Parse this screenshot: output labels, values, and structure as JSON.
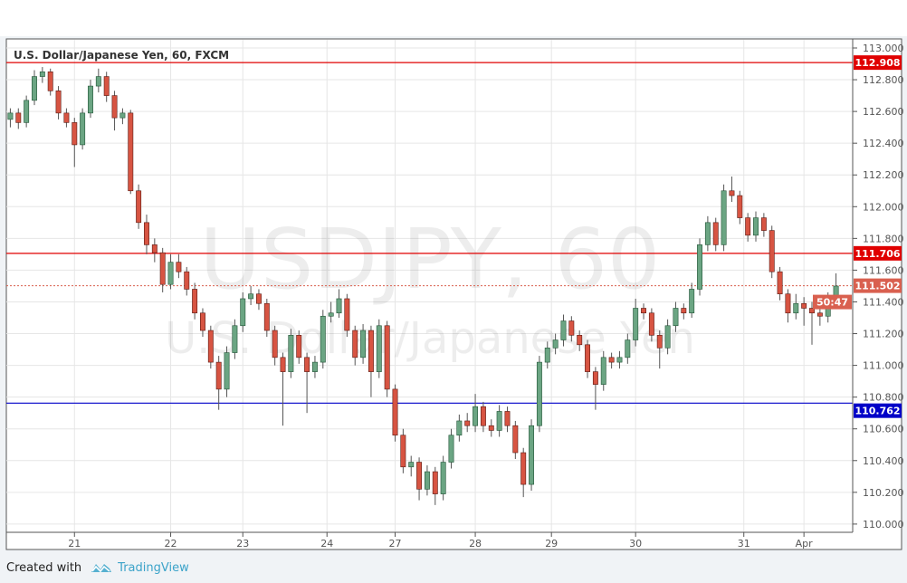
{
  "chart_data": {
    "type": "candlestick",
    "title": "U.S. Dollar/Japanese Yen, 60, FXCM",
    "watermark": {
      "symbol": "USDJPY, 60",
      "description": "U.S. Dollar/Japanese Yen"
    },
    "ylim": [
      109.95,
      113.05
    ],
    "yticks": [
      110.0,
      110.2,
      110.4,
      110.6,
      110.8,
      111.0,
      111.2,
      111.4,
      111.6,
      111.8,
      112.0,
      112.2,
      112.4,
      112.6,
      112.8,
      113.0
    ],
    "grid": true,
    "colors": {
      "up": "#6ba583",
      "down": "#d75442",
      "up_border": "#225437",
      "down_border": "#5b1a13",
      "grid": "#e6e6e6"
    },
    "xticks": [
      {
        "label": "21",
        "at_candle": 8
      },
      {
        "label": "22",
        "at_candle": 20
      },
      {
        "label": "23",
        "at_candle": 29
      },
      {
        "label": "24",
        "at_candle": 39.5
      },
      {
        "label": "27",
        "at_candle": 48
      },
      {
        "label": "28",
        "at_candle": 58
      },
      {
        "label": "29",
        "at_candle": 67.5
      },
      {
        "label": "30",
        "at_candle": 78
      },
      {
        "label": "31",
        "at_candle": 91.5
      },
      {
        "label": "Apr",
        "at_candle": 99
      }
    ],
    "horizontal_lines": [
      {
        "price": 112.908,
        "label": "112.908",
        "color": "#e00000",
        "style": "solid"
      },
      {
        "price": 111.706,
        "label": "111.706",
        "color": "#e00000",
        "style": "solid"
      },
      {
        "price": 110.762,
        "label": "110.762",
        "color": "#0000c8",
        "style": "solid"
      }
    ],
    "last_price": {
      "price": 111.502,
      "label": "111.502",
      "countdown": "50:47",
      "color": "#d9604f"
    },
    "candles_ohlc": [
      [
        112.55,
        112.62,
        112.5,
        112.59
      ],
      [
        112.59,
        112.62,
        112.49,
        112.53
      ],
      [
        112.53,
        112.7,
        112.5,
        112.67
      ],
      [
        112.67,
        112.86,
        112.64,
        112.82
      ],
      [
        112.82,
        112.88,
        112.78,
        112.85
      ],
      [
        112.85,
        112.87,
        112.7,
        112.73
      ],
      [
        112.73,
        112.76,
        112.55,
        112.59
      ],
      [
        112.59,
        112.62,
        112.5,
        112.53
      ],
      [
        112.53,
        112.56,
        112.25,
        112.39
      ],
      [
        112.39,
        112.62,
        112.36,
        112.59
      ],
      [
        112.59,
        112.8,
        112.56,
        112.76
      ],
      [
        112.76,
        112.87,
        112.72,
        112.82
      ],
      [
        112.82,
        112.85,
        112.66,
        112.7
      ],
      [
        112.7,
        112.73,
        112.48,
        112.56
      ],
      [
        112.56,
        112.62,
        112.52,
        112.59
      ],
      [
        112.59,
        112.61,
        112.08,
        112.1
      ],
      [
        112.1,
        112.14,
        111.86,
        111.9
      ],
      [
        111.9,
        111.95,
        111.7,
        111.76
      ],
      [
        111.76,
        111.8,
        111.65,
        111.71
      ],
      [
        111.71,
        111.74,
        111.46,
        111.51
      ],
      [
        111.51,
        111.7,
        111.48,
        111.65
      ],
      [
        111.65,
        111.7,
        111.55,
        111.59
      ],
      [
        111.59,
        111.62,
        111.44,
        111.48
      ],
      [
        111.48,
        111.52,
        111.29,
        111.33
      ],
      [
        111.33,
        111.36,
        111.18,
        111.22
      ],
      [
        111.22,
        111.25,
        110.98,
        111.02
      ],
      [
        111.02,
        111.06,
        110.72,
        110.85
      ],
      [
        110.85,
        111.12,
        110.8,
        111.08
      ],
      [
        111.08,
        111.29,
        111.04,
        111.25
      ],
      [
        111.25,
        111.46,
        111.21,
        111.42
      ],
      [
        111.42,
        111.5,
        111.38,
        111.45
      ],
      [
        111.45,
        111.48,
        111.35,
        111.39
      ],
      [
        111.39,
        111.42,
        111.18,
        111.22
      ],
      [
        111.22,
        111.25,
        111.0,
        111.05
      ],
      [
        111.05,
        111.08,
        110.62,
        110.96
      ],
      [
        110.96,
        111.23,
        110.92,
        111.19
      ],
      [
        111.19,
        111.22,
        111.01,
        111.05
      ],
      [
        111.05,
        111.08,
        110.7,
        110.96
      ],
      [
        110.96,
        111.06,
        110.92,
        111.02
      ],
      [
        111.02,
        111.35,
        110.98,
        111.31
      ],
      [
        111.31,
        111.4,
        111.27,
        111.33
      ],
      [
        111.33,
        111.48,
        111.3,
        111.42
      ],
      [
        111.42,
        111.45,
        111.18,
        111.22
      ],
      [
        111.22,
        111.25,
        111.0,
        111.05
      ],
      [
        111.05,
        111.26,
        111.01,
        111.22
      ],
      [
        111.22,
        111.25,
        110.8,
        110.96
      ],
      [
        110.96,
        111.29,
        110.92,
        111.25
      ],
      [
        111.25,
        111.28,
        110.8,
        110.85
      ],
      [
        110.85,
        110.88,
        110.52,
        110.56
      ],
      [
        110.56,
        110.6,
        110.32,
        110.36
      ],
      [
        110.36,
        110.43,
        110.3,
        110.39
      ],
      [
        110.39,
        110.42,
        110.15,
        110.22
      ],
      [
        110.22,
        110.37,
        110.18,
        110.33
      ],
      [
        110.33,
        110.36,
        110.12,
        110.19
      ],
      [
        110.19,
        110.43,
        110.15,
        110.39
      ],
      [
        110.39,
        110.6,
        110.35,
        110.56
      ],
      [
        110.56,
        110.69,
        110.52,
        110.65
      ],
      [
        110.65,
        110.7,
        110.58,
        110.62
      ],
      [
        110.62,
        110.82,
        110.58,
        110.74
      ],
      [
        110.74,
        110.77,
        110.58,
        110.62
      ],
      [
        110.62,
        110.66,
        110.55,
        110.59
      ],
      [
        110.59,
        110.75,
        110.55,
        110.71
      ],
      [
        110.71,
        110.74,
        110.58,
        110.62
      ],
      [
        110.62,
        110.65,
        110.41,
        110.45
      ],
      [
        110.45,
        110.48,
        110.17,
        110.25
      ],
      [
        110.25,
        110.66,
        110.21,
        110.62
      ],
      [
        110.62,
        111.06,
        110.58,
        111.02
      ],
      [
        111.02,
        111.15,
        110.98,
        111.11
      ],
      [
        111.11,
        111.2,
        111.07,
        111.16
      ],
      [
        111.16,
        111.32,
        111.12,
        111.28
      ],
      [
        111.28,
        111.31,
        111.15,
        111.19
      ],
      [
        111.19,
        111.22,
        111.09,
        111.13
      ],
      [
        111.13,
        111.16,
        110.92,
        110.96
      ],
      [
        110.96,
        110.99,
        110.72,
        110.88
      ],
      [
        110.88,
        111.09,
        110.84,
        111.05
      ],
      [
        111.05,
        111.08,
        110.98,
        111.02
      ],
      [
        111.02,
        111.09,
        110.98,
        111.05
      ],
      [
        111.05,
        111.2,
        111.01,
        111.16
      ],
      [
        111.16,
        111.42,
        111.12,
        111.36
      ],
      [
        111.36,
        111.39,
        111.29,
        111.33
      ],
      [
        111.33,
        111.36,
        111.15,
        111.19
      ],
      [
        111.19,
        111.22,
        110.98,
        111.11
      ],
      [
        111.11,
        111.29,
        111.07,
        111.25
      ],
      [
        111.25,
        111.4,
        111.21,
        111.36
      ],
      [
        111.36,
        111.39,
        111.29,
        111.33
      ],
      [
        111.33,
        111.52,
        111.3,
        111.48
      ],
      [
        111.48,
        111.8,
        111.44,
        111.76
      ],
      [
        111.76,
        111.94,
        111.72,
        111.9
      ],
      [
        111.9,
        111.93,
        111.72,
        111.76
      ],
      [
        111.76,
        112.14,
        111.72,
        112.1
      ],
      [
        112.1,
        112.19,
        112.03,
        112.07
      ],
      [
        112.07,
        112.1,
        111.89,
        111.93
      ],
      [
        111.93,
        111.96,
        111.78,
        111.82
      ],
      [
        111.82,
        111.97,
        111.78,
        111.93
      ],
      [
        111.93,
        111.96,
        111.81,
        111.85
      ],
      [
        111.85,
        111.88,
        111.55,
        111.59
      ],
      [
        111.59,
        111.62,
        111.41,
        111.45
      ],
      [
        111.45,
        111.48,
        111.27,
        111.33
      ],
      [
        111.33,
        111.45,
        111.29,
        111.39
      ],
      [
        111.39,
        111.43,
        111.25,
        111.36
      ],
      [
        111.36,
        111.4,
        111.13,
        111.33
      ],
      [
        111.33,
        111.37,
        111.25,
        111.31
      ],
      [
        111.31,
        111.46,
        111.27,
        111.42
      ],
      [
        111.42,
        111.58,
        111.4,
        111.5
      ]
    ]
  },
  "footer": {
    "created_with": "Created with",
    "brand": "TradingView",
    "logo_color": "#3ba3c9"
  }
}
